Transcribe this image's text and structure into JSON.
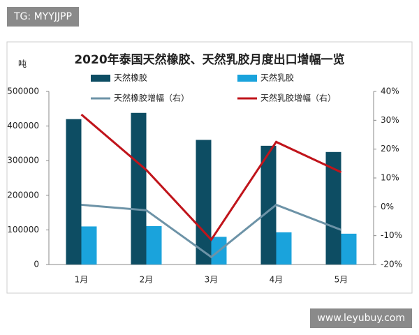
{
  "watermarks": [
    "TG: MYYJJPP",
    "www.leyubuy.com"
  ],
  "chart_data": {
    "type": "combo",
    "title": "2020年泰国天然橡胶、天然乳胶月度出口增幅一览",
    "y_label": "吨",
    "categories": [
      "1月",
      "2月",
      "3月",
      "4月",
      "5月"
    ],
    "series": [
      {
        "name": "天然橡胶",
        "type": "bar",
        "color": "#0d4d63",
        "values": [
          420000,
          438000,
          360000,
          343000,
          325000
        ]
      },
      {
        "name": "天然乳胶",
        "type": "bar",
        "color": "#1aa3dc",
        "values": [
          110000,
          111000,
          80000,
          93000,
          89000
        ]
      },
      {
        "name": "天然橡胶增幅（右）",
        "type": "line",
        "axis": "y2",
        "color": "#6d93a7",
        "values": [
          0.7,
          -1.2,
          -17.4,
          0.7,
          -8
        ]
      },
      {
        "name": "天然乳胶增幅（右）",
        "type": "line",
        "axis": "y2",
        "color": "#c0141b",
        "values": [
          32,
          12.8,
          -11.4,
          22.5,
          12
        ]
      }
    ],
    "ylim": [
      0,
      500000
    ],
    "yticks": [
      0,
      100000,
      200000,
      300000,
      400000,
      500000
    ],
    "y2lim": [
      -20,
      40
    ],
    "y2ticks": [
      {
        "value": -20,
        "label": "-20%"
      },
      {
        "value": -10,
        "label": "-10%"
      },
      {
        "value": 0,
        "label": "0%"
      },
      {
        "value": 10,
        "label": "10%"
      },
      {
        "value": 20,
        "label": "20%"
      },
      {
        "value": 30,
        "label": "30%"
      },
      {
        "value": 40,
        "label": "40%"
      }
    ]
  }
}
